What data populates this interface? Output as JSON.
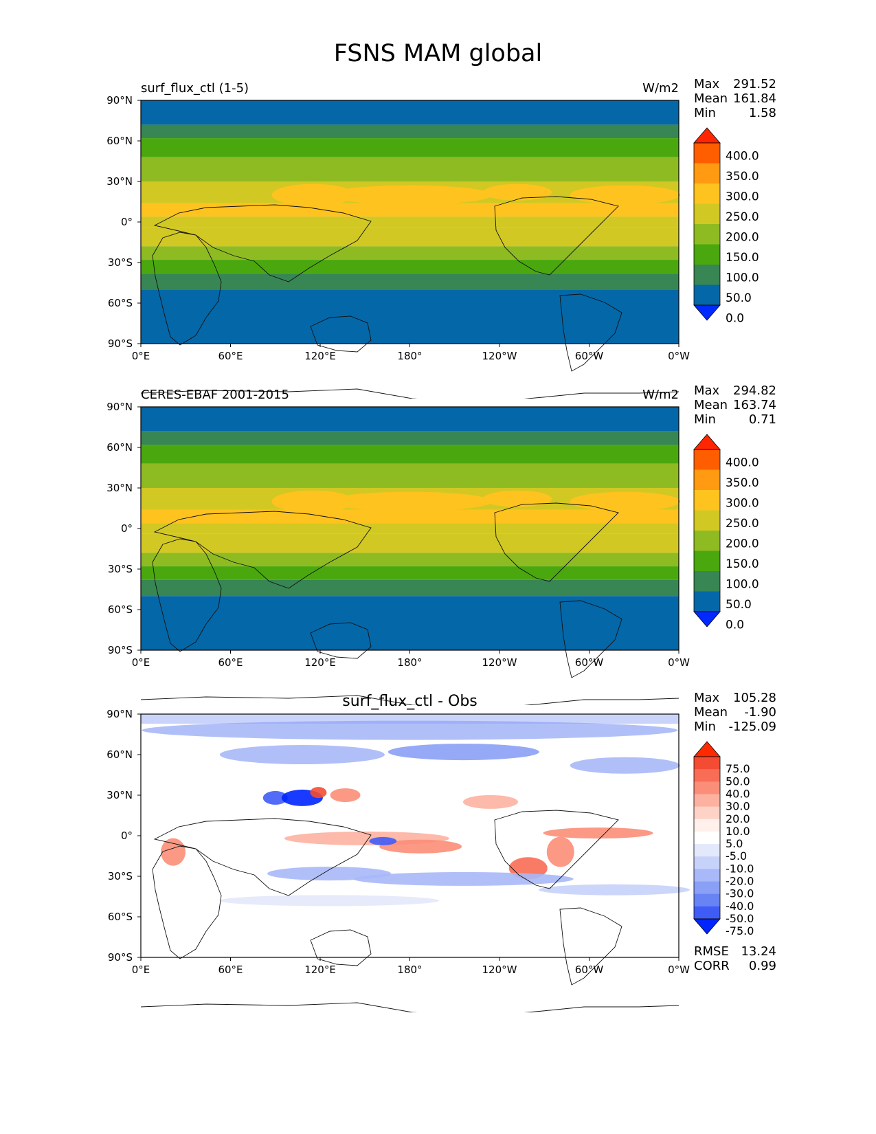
{
  "figure": {
    "title": "FSNS MAM global"
  },
  "axes": {
    "lat_labels": [
      "90°N",
      "60°N",
      "30°N",
      "0°",
      "30°S",
      "60°S",
      "90°S"
    ],
    "lon_labels": [
      "0°E",
      "60°E",
      "120°E",
      "180°",
      "120°W",
      "60°W",
      "0°W"
    ]
  },
  "panels": [
    {
      "left_title": "surf_flux_ctl (1-5)",
      "center_title": "",
      "units": "W/m2",
      "stats": [
        {
          "label": "Max",
          "value": "291.52"
        },
        {
          "label": "Mean",
          "value": "161.84"
        },
        {
          "label": "Min",
          "value": "1.58"
        }
      ],
      "colorbar": {
        "labels": [
          "400.0",
          "350.0",
          "300.0",
          "250.0",
          "200.0",
          "150.0",
          "100.0",
          "50.0",
          "0.0"
        ],
        "colors": [
          "#ff2600",
          "#ff5e00",
          "#ff9a12",
          "#ffc31f",
          "#d2c823",
          "#8fbb22",
          "#4aa80e",
          "#378654",
          "#0467a8",
          "#002aff"
        ]
      },
      "footer": []
    },
    {
      "left_title": "CERES-EBAF 2001-2015",
      "center_title": "",
      "units": "W/m2",
      "stats": [
        {
          "label": "Max",
          "value": "294.82"
        },
        {
          "label": "Mean",
          "value": "163.74"
        },
        {
          "label": "Min",
          "value": "0.71"
        }
      ],
      "colorbar": {
        "labels": [
          "400.0",
          "350.0",
          "300.0",
          "250.0",
          "200.0",
          "150.0",
          "100.0",
          "50.0",
          "0.0"
        ],
        "colors": [
          "#ff2600",
          "#ff5e00",
          "#ff9a12",
          "#ffc31f",
          "#d2c823",
          "#8fbb22",
          "#4aa80e",
          "#378654",
          "#0467a8",
          "#002aff"
        ]
      },
      "footer": []
    },
    {
      "left_title": "",
      "center_title": "surf_flux_ctl - Obs",
      "units": "",
      "stats": [
        {
          "label": "Max",
          "value": "105.28"
        },
        {
          "label": "Mean",
          "value": "-1.90"
        },
        {
          "label": "Min",
          "value": "-125.09"
        }
      ],
      "colorbar": {
        "labels": [
          "75.0",
          "50.0",
          "40.0",
          "30.0",
          "20.0",
          "10.0",
          "5.0",
          "-5.0",
          "-10.0",
          "-20.0",
          "-30.0",
          "-40.0",
          "-50.0",
          "-75.0"
        ],
        "colors": [
          "#ff2a00",
          "#f44c33",
          "#f86d55",
          "#fb8e78",
          "#fdb1a0",
          "#fed2c7",
          "#fff0eb",
          "#ffffff",
          "#e3e8fb",
          "#c7d2fa",
          "#a8b8f8",
          "#8aa0f6",
          "#6883f4",
          "#3f5cf7",
          "#0025ff"
        ]
      },
      "footer": [
        {
          "label": "RMSE",
          "value": "13.24"
        },
        {
          "label": "CORR",
          "value": "0.99"
        }
      ]
    }
  ]
}
